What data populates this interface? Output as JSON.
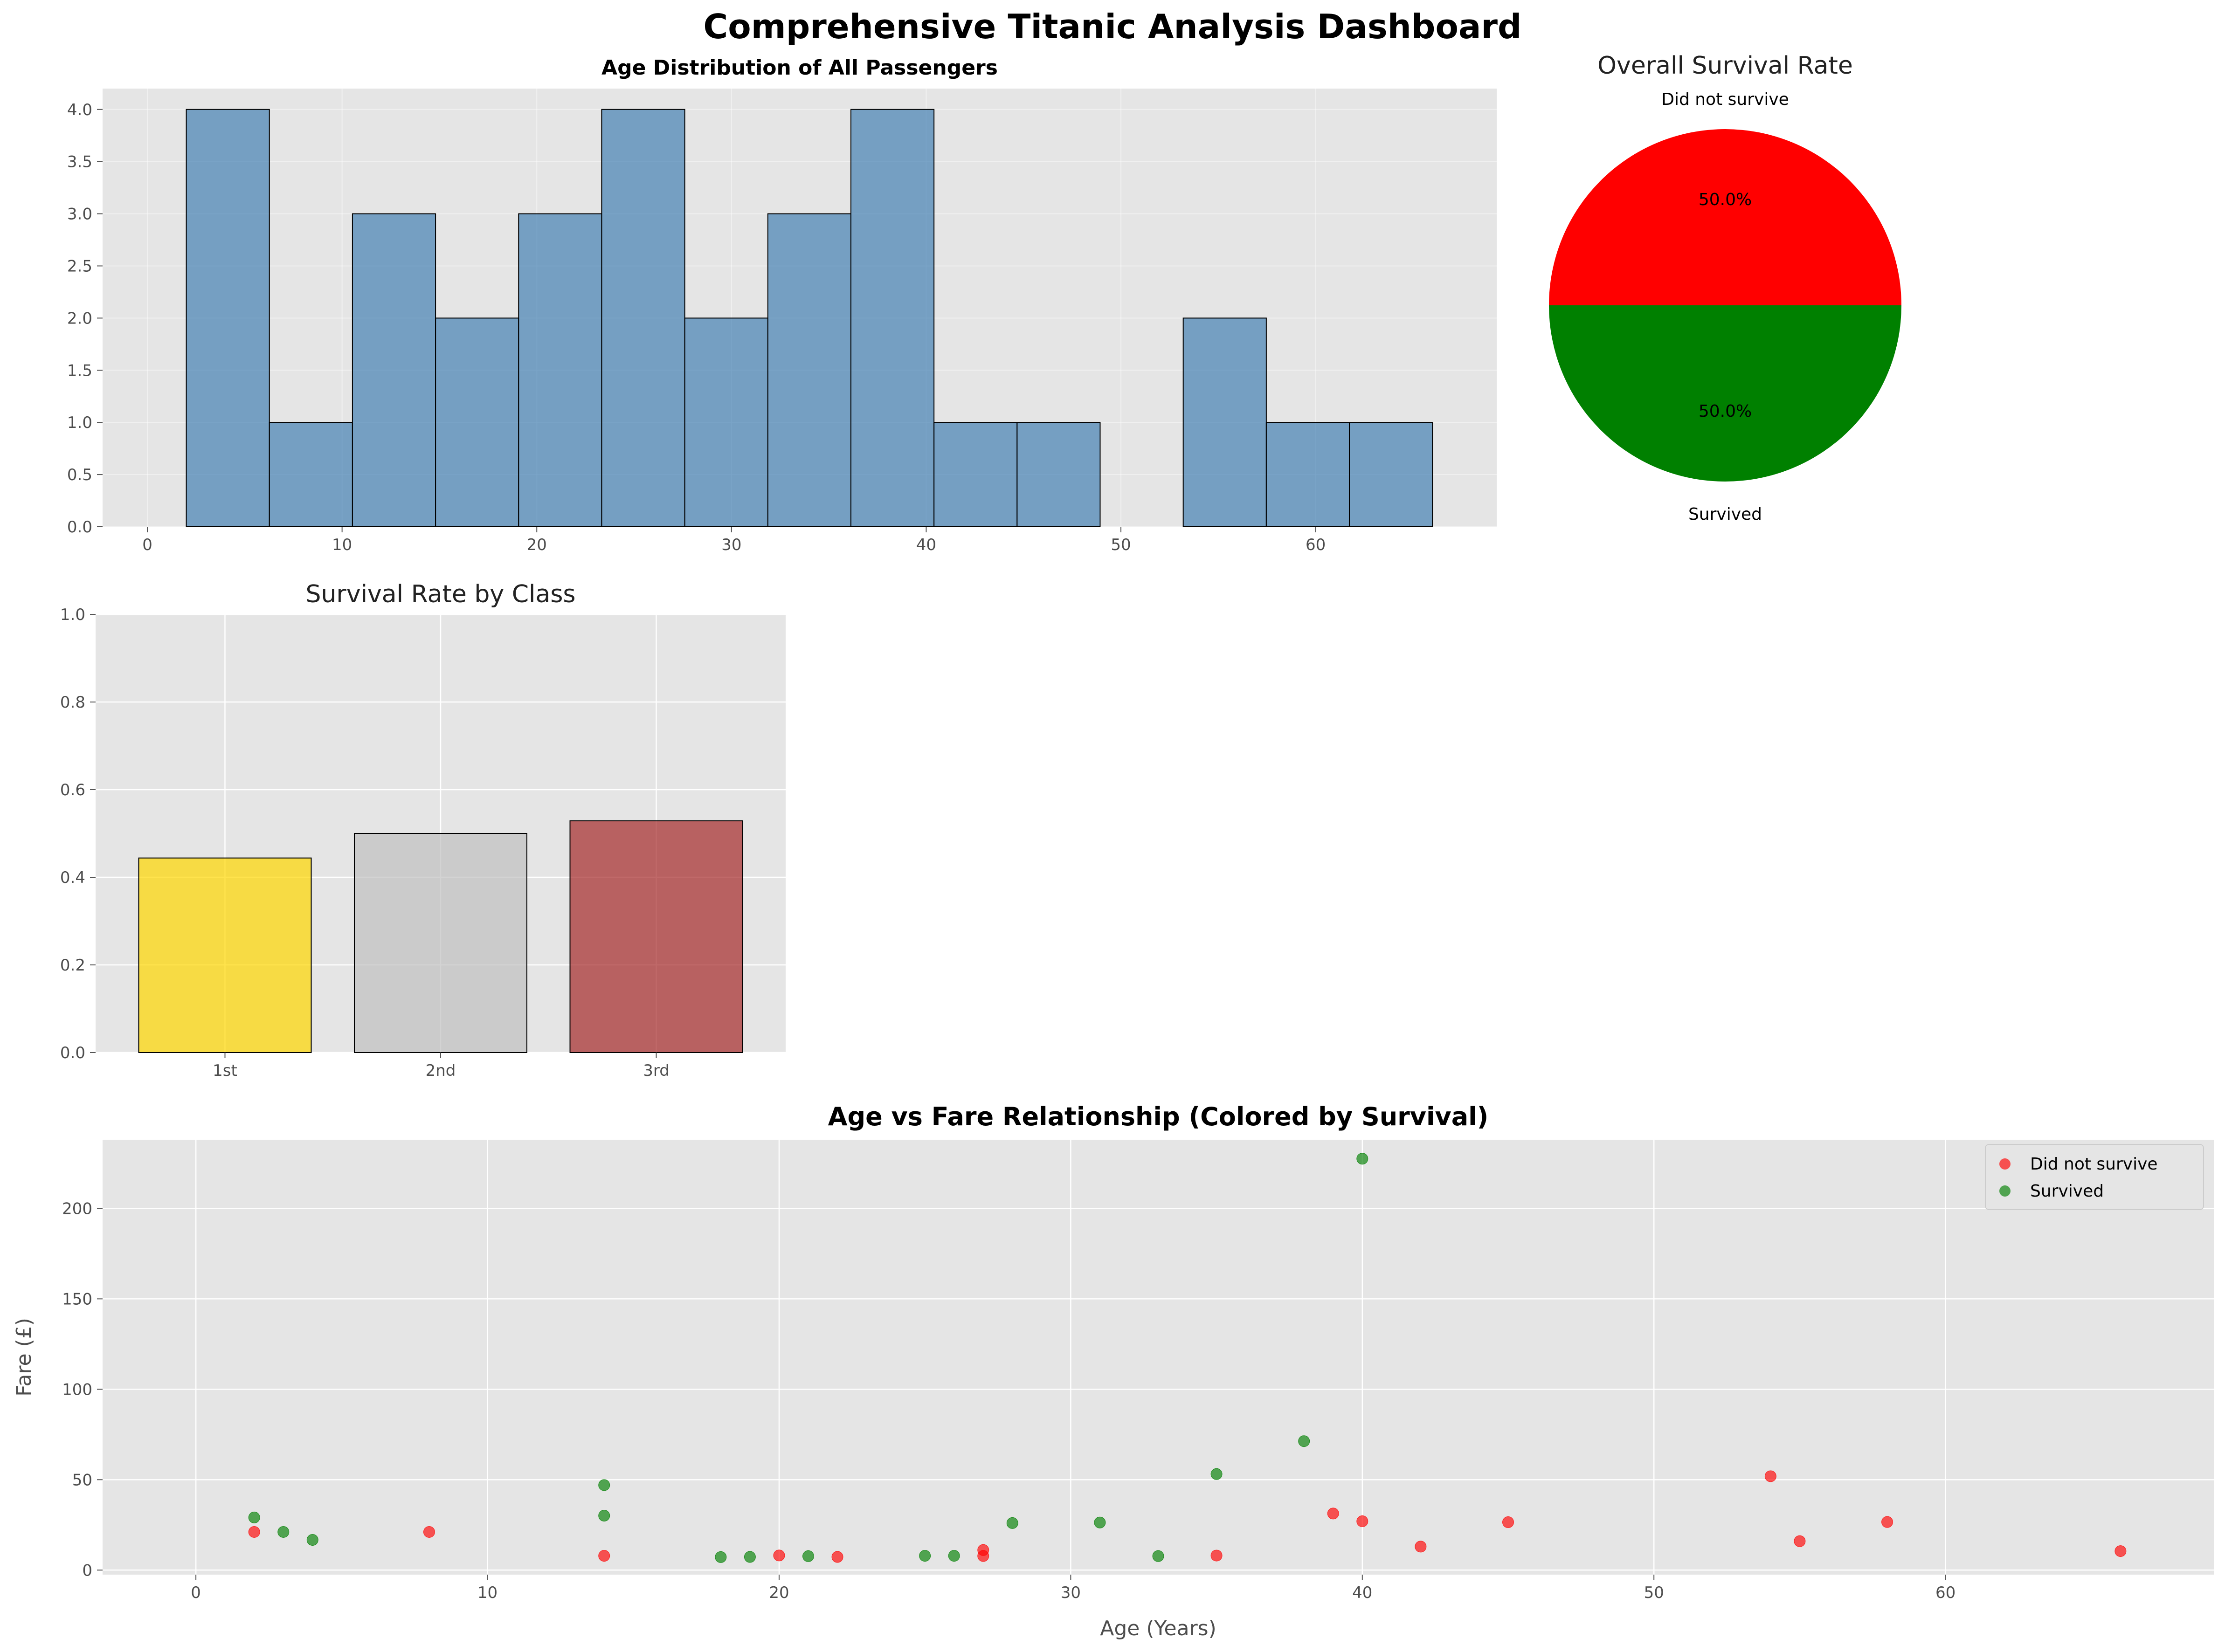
{
  "title": "Comprehensive Titanic Analysis Dashboard",
  "colors": {
    "panel_bg": "#e5e5e5",
    "grid": "#ffffff",
    "hist_bar": "#4682b4",
    "pie_not_survived": "#ff0000",
    "pie_survived": "#008000",
    "class_1st": "#ffd700",
    "class_2nd": "#c0c0c0",
    "class_3rd": "#a52a2a",
    "scatter_not_survived": "#ff0000",
    "scatter_survived": "#008000"
  },
  "chart_data": [
    {
      "id": "hist",
      "type": "bar",
      "title": "Age Distribution of All Passengers",
      "bin_edges": [
        2.0,
        6.267,
        10.533,
        14.8,
        19.067,
        23.333,
        27.6,
        31.867,
        36.133,
        40.4,
        44.667,
        48.933,
        53.2,
        57.467,
        61.733,
        66.0
      ],
      "values": [
        4,
        1,
        3,
        2,
        3,
        4,
        2,
        3,
        4,
        1,
        1,
        0,
        2,
        1,
        1
      ],
      "xlim": [
        -2.3,
        69.3
      ],
      "ylim": [
        0,
        4.2
      ],
      "xticks": [
        0,
        10,
        20,
        30,
        40,
        50,
        60
      ],
      "yticks": [
        0.0,
        0.5,
        1.0,
        1.5,
        2.0,
        2.5,
        3.0,
        3.5,
        4.0
      ],
      "ytick_labels": [
        "0.0",
        "0.5",
        "1.0",
        "1.5",
        "2.0",
        "2.5",
        "3.0",
        "3.5",
        "4.0"
      ],
      "grid": true
    },
    {
      "id": "pie",
      "type": "pie",
      "title": "Overall Survival Rate",
      "labels": [
        "Did not survive",
        "Survived"
      ],
      "values": [
        50,
        50
      ],
      "pct_labels": [
        "50.0%",
        "50.0%"
      ]
    },
    {
      "id": "classbar",
      "type": "bar",
      "title": "Survival Rate by Class",
      "categories": [
        "1st",
        "2nd",
        "3rd"
      ],
      "values": [
        0.444,
        0.5,
        0.529
      ],
      "ylim": [
        0,
        1.0
      ],
      "yticks": [
        0.0,
        0.2,
        0.4,
        0.6,
        0.8,
        1.0
      ],
      "ytick_labels": [
        "0.0",
        "0.2",
        "0.4",
        "0.6",
        "0.8",
        "1.0"
      ],
      "grid": true
    },
    {
      "id": "scatter",
      "type": "scatter",
      "title": "Age vs Fare Relationship (Colored by Survival)",
      "xlabel": "Age (Years)",
      "ylabel": "Fare (£)",
      "xlim": [
        -3.2,
        69.2
      ],
      "ylim": [
        -2.5,
        238
      ],
      "xticks": [
        0,
        10,
        20,
        30,
        40,
        50,
        60
      ],
      "yticks": [
        0,
        50,
        100,
        150,
        200
      ],
      "legend_position": "top-right",
      "grid": true,
      "series": [
        {
          "name": "Did not survive",
          "points": [
            [
              2,
              21.1
            ],
            [
              8,
              21.1
            ],
            [
              14,
              7.9
            ],
            [
              20,
              8.1
            ],
            [
              22,
              7.3
            ],
            [
              27,
              7.8
            ],
            [
              27,
              11.1
            ],
            [
              35,
              8.05
            ],
            [
              39,
              31.3
            ],
            [
              40,
              27.0
            ],
            [
              42,
              13.0
            ],
            [
              45,
              26.5
            ],
            [
              54,
              51.9
            ],
            [
              55,
              16.0
            ],
            [
              58,
              26.6
            ],
            [
              66,
              10.5
            ]
          ]
        },
        {
          "name": "Survived",
          "points": [
            [
              2,
              29.1
            ],
            [
              3,
              21.1
            ],
            [
              4,
              16.7
            ],
            [
              14,
              30.1
            ],
            [
              14,
              47.0
            ],
            [
              18,
              7.2
            ],
            [
              19,
              7.3
            ],
            [
              21,
              7.7
            ],
            [
              25,
              7.9
            ],
            [
              26,
              7.9
            ],
            [
              28,
              26.0
            ],
            [
              31,
              26.3
            ],
            [
              33,
              7.75
            ],
            [
              35,
              53.1
            ],
            [
              38,
              71.3
            ],
            [
              40,
              227.5
            ]
          ]
        }
      ]
    }
  ]
}
